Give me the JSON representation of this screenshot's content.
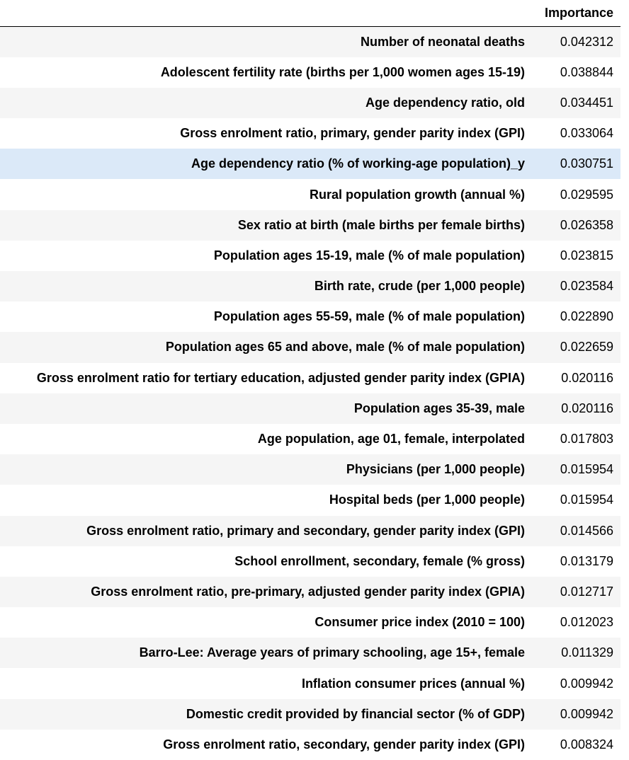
{
  "table": {
    "header": {
      "index": "",
      "importance": "Importance"
    },
    "highlight_row_index": 4,
    "rows": [
      {
        "feature": "Number of neonatal deaths",
        "importance": "0.042312"
      },
      {
        "feature": "Adolescent fertility rate (births per 1,000 women ages 15-19)",
        "importance": "0.038844"
      },
      {
        "feature": "Age dependency ratio, old",
        "importance": "0.034451"
      },
      {
        "feature": "Gross enrolment ratio, primary, gender parity index (GPI)",
        "importance": "0.033064"
      },
      {
        "feature": "Age dependency ratio (% of working-age population)_y",
        "importance": "0.030751"
      },
      {
        "feature": "Rural population growth (annual %)",
        "importance": "0.029595"
      },
      {
        "feature": "Sex ratio at birth (male births per female births)",
        "importance": "0.026358"
      },
      {
        "feature": "Population ages 15-19, male (% of male population)",
        "importance": "0.023815"
      },
      {
        "feature": "Birth rate, crude (per 1,000 people)",
        "importance": "0.023584"
      },
      {
        "feature": "Population ages 55-59, male (% of male population)",
        "importance": "0.022890"
      },
      {
        "feature": "Population ages 65 and above, male (% of male population)",
        "importance": "0.022659"
      },
      {
        "feature": "Gross enrolment ratio for tertiary education, adjusted gender parity index (GPIA)",
        "importance": "0.020116"
      },
      {
        "feature": "Population ages 35-39, male",
        "importance": "0.020116"
      },
      {
        "feature": "Age population, age 01, female, interpolated",
        "importance": "0.017803"
      },
      {
        "feature": "Physicians (per 1,000 people)",
        "importance": "0.015954"
      },
      {
        "feature": "Hospital beds (per 1,000 people)",
        "importance": "0.015954"
      },
      {
        "feature": "Gross enrolment ratio, primary and secondary, gender parity index (GPI)",
        "importance": "0.014566"
      },
      {
        "feature": "School enrollment, secondary, female (% gross)",
        "importance": "0.013179"
      },
      {
        "feature": "Gross enrolment ratio, pre-primary, adjusted gender parity index (GPIA)",
        "importance": "0.012717"
      },
      {
        "feature": "Consumer price index (2010 = 100)",
        "importance": "0.012023"
      },
      {
        "feature": "Barro-Lee: Average years of primary schooling, age 15+, female",
        "importance": "0.011329"
      },
      {
        "feature": "Inflation consumer prices (annual %)",
        "importance": "0.009942"
      },
      {
        "feature": "Domestic credit provided by financial sector (% of GDP)",
        "importance": "0.009942"
      },
      {
        "feature": "Gross enrolment ratio, secondary, gender parity index (GPI)",
        "importance": "0.008324"
      }
    ]
  }
}
